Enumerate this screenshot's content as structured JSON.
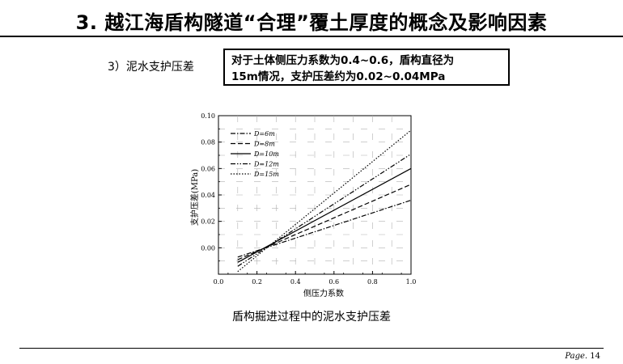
{
  "header": {
    "title": "3. 越江海盾构隧道“合理”覆土厚度的概念及影响因素"
  },
  "section": {
    "label": "3）泥水支护压差"
  },
  "note": {
    "line1": "对于土体侧压力系数为0.4~0.6，盾构直径为",
    "line2": "15m情况，支护压差约为0.02~0.04MPa"
  },
  "figure": {
    "caption": "盾构掘进过程中的泥水支护压差"
  },
  "footer": {
    "page_label": "Page.",
    "page_number": "14"
  },
  "chart_data": {
    "type": "line",
    "xlabel": "侧压力系数",
    "ylabel": "支护压差(MPa)",
    "xlim": [
      0.0,
      1.0
    ],
    "ylim": [
      -0.02,
      0.1
    ],
    "xticks": [
      "0.0",
      "0.2",
      "0.4",
      "0.6",
      "0.8",
      "1.0"
    ],
    "yticks": [
      "0.00",
      "0.02",
      "0.04",
      "0.06",
      "0.08",
      "0.10"
    ],
    "grid": true,
    "legend_position": "top-left",
    "series": [
      {
        "name": "D=6m",
        "dash": "dash-dot",
        "x": [
          0.1,
          1.0
        ],
        "y": [
          -0.007,
          0.036
        ]
      },
      {
        "name": "D=8m",
        "dash": "dash",
        "x": [
          0.1,
          1.0
        ],
        "y": [
          -0.009,
          0.048
        ]
      },
      {
        "name": "D=10m",
        "dash": "solid",
        "x": [
          0.1,
          1.0
        ],
        "y": [
          -0.011,
          0.06
        ]
      },
      {
        "name": "D=12m",
        "dash": "dash-dot-dot",
        "x": [
          0.1,
          1.0
        ],
        "y": [
          -0.014,
          0.071
        ]
      },
      {
        "name": "D=15m",
        "dash": "dot",
        "x": [
          0.1,
          1.0
        ],
        "y": [
          -0.018,
          0.089
        ]
      }
    ]
  }
}
